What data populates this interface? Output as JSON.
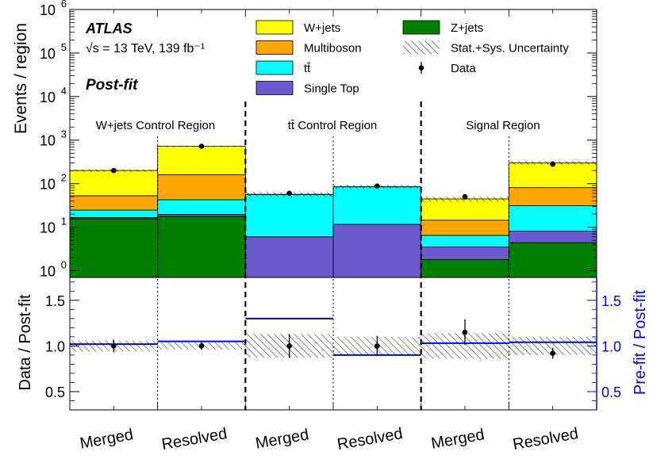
{
  "chart_data": {
    "type": "bar",
    "stacked": true,
    "yscale_top": "log",
    "experiment": "ATLAS",
    "energy_label": "√s = 13 TeV, 139 fb⁻¹",
    "fit_label": "Post-fit",
    "ylabel_top": "Events / region",
    "ylabel_bottom_left": "Data / Post-fit",
    "ylabel_bottom_right": "Pre-fit / Post-fit",
    "ylim_top": [
      0.7,
      1000000
    ],
    "ylim_bottom": [
      0.3,
      1.75
    ],
    "yticks_bottom": [
      "0.5",
      "1.0",
      "1.5"
    ],
    "yticks_top": [
      {
        "base": "10",
        "exp": "0"
      },
      {
        "base": "10",
        "exp": "1"
      },
      {
        "base": "10",
        "exp": "2"
      },
      {
        "base": "10",
        "exp": "3"
      },
      {
        "base": "10",
        "exp": "4"
      },
      {
        "base": "10",
        "exp": "5"
      },
      {
        "base": "10",
        "exp": "6"
      }
    ],
    "regions": [
      "W+jets Control Region",
      "tt̄ Control Region",
      "Signal Region"
    ],
    "categories": [
      "Merged",
      "Resolved",
      "Merged",
      "Resolved",
      "Merged",
      "Resolved"
    ],
    "legend": [
      {
        "name": "W+jets",
        "color": "#ffff00",
        "kind": "box"
      },
      {
        "name": "Z+jets",
        "color": "#008000",
        "kind": "box"
      },
      {
        "name": "Multiboson",
        "color": "#ffa500",
        "kind": "box"
      },
      {
        "name": "Stat.+Sys. Uncertainty",
        "color": "#000000",
        "kind": "hatch"
      },
      {
        "name": "tt̄",
        "color": "#00ffff",
        "kind": "box"
      },
      {
        "name": "Data",
        "color": "#000000",
        "kind": "marker"
      },
      {
        "name": "Single Top",
        "color": "#6a5acd",
        "kind": "box"
      }
    ],
    "series": [
      {
        "name": "Z+jets",
        "color": "#008000",
        "values": [
          15,
          17,
          0,
          0,
          1.1,
          3.7
        ]
      },
      {
        "name": "Single Top",
        "color": "#6a5acd",
        "values": [
          1,
          2,
          5.3,
          10.9,
          1.7,
          3.7
        ]
      },
      {
        "name": "tt̄",
        "color": "#00ffff",
        "values": [
          8,
          23,
          50,
          73,
          3,
          23
        ]
      },
      {
        "name": "Multiboson",
        "color": "#ffa500",
        "values": [
          28,
          118,
          0,
          0,
          8,
          50
        ]
      },
      {
        "name": "W+jets",
        "color": "#ffff00",
        "values": [
          148,
          560,
          1,
          1,
          30,
          220
        ]
      }
    ],
    "data": [
      200,
      720,
      60,
      88,
      50,
      280
    ],
    "data_err_low": [
      14,
      27,
      8,
      9,
      7,
      17
    ],
    "data_err_high": [
      14,
      27,
      8,
      9,
      7,
      17
    ],
    "ratio_data": [
      1.0,
      1.0,
      1.0,
      1.0,
      1.15,
      0.92
    ],
    "ratio_data_err": [
      0.07,
      0.04,
      0.13,
      0.11,
      0.14,
      0.06
    ],
    "ratio_unc": [
      0.06,
      0.04,
      0.13,
      0.1,
      0.14,
      0.1
    ],
    "ratio_prefit": [
      1.02,
      1.05,
      1.3,
      0.9,
      1.03,
      1.04
    ],
    "prefit_color": "#0000ff"
  }
}
